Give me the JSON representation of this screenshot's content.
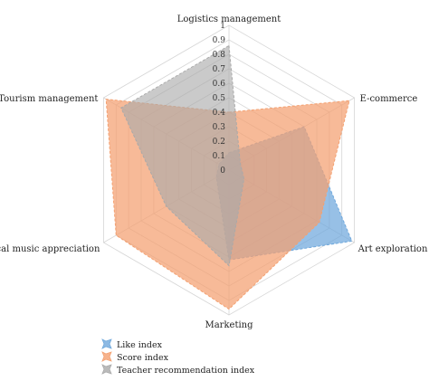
{
  "chart_data": {
    "type": "radar",
    "axes": [
      "Logistics management",
      "E-commerce",
      "Art exploration",
      "Marketing",
      "Classical music appreciation",
      "Tourism management"
    ],
    "ticks": [
      "0",
      "0.1",
      "0.2",
      "0.3",
      "0.4",
      "0.5",
      "0.6",
      "0.7",
      "0.8",
      "0.9",
      "1"
    ],
    "range": [
      0,
      1
    ],
    "grid": true,
    "legend_position": "bottom-left",
    "series": [
      {
        "name": "Like index",
        "values": [
          0.12,
          0.6,
          0.98,
          0.62,
          0.1,
          0.08
        ],
        "color": "#6fa8dc"
      },
      {
        "name": "Score index",
        "values": [
          0.4,
          0.96,
          0.72,
          0.96,
          0.9,
          0.98
        ],
        "color": "#f4a070"
      },
      {
        "name": "Teacher recommendation index",
        "values": [
          0.86,
          0.09,
          0.12,
          0.66,
          0.5,
          0.86
        ],
        "color": "#a9a9a9"
      }
    ]
  }
}
